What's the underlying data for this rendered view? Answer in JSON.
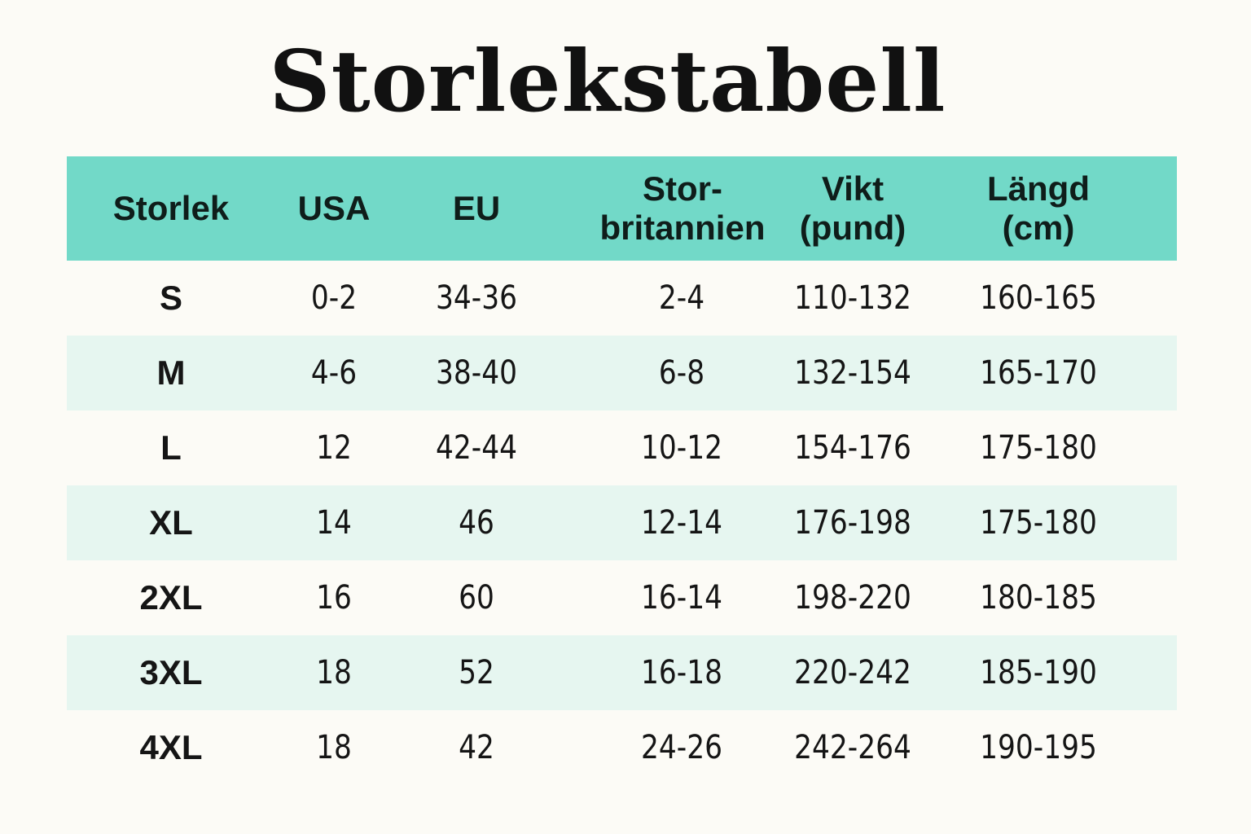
{
  "title": "Storlekstabell",
  "colors": {
    "background": "#fcfbf6",
    "header_bg": "#72d9c8",
    "alt_row_bg": "#e6f6f0",
    "text": "#111111"
  },
  "table": {
    "headers": [
      {
        "line1": "Storlek",
        "line2": ""
      },
      {
        "line1": "USA",
        "line2": ""
      },
      {
        "line1": "EU",
        "line2": ""
      },
      {
        "line1": "Stor-",
        "line2": "britannien"
      },
      {
        "line1": "Vikt",
        "line2": "(pund)"
      },
      {
        "line1": "Längd",
        "line2": "(cm)"
      }
    ],
    "rows": [
      [
        "S",
        "0-2",
        "34-36",
        "2-4",
        "110-132",
        "160-165"
      ],
      [
        "M",
        "4-6",
        "38-40",
        "6-8",
        "132-154",
        "165-170"
      ],
      [
        "L",
        "12",
        "42-44",
        "10-12",
        "154-176",
        "175-180"
      ],
      [
        "XL",
        "14",
        "46",
        "12-14",
        "176-198",
        "175-180"
      ],
      [
        "2XL",
        "16",
        "60",
        "16-14",
        "198-220",
        "180-185"
      ],
      [
        "3XL",
        "18",
        "52",
        "16-18",
        "220-242",
        "185-190"
      ],
      [
        "4XL",
        "18",
        "42",
        "24-26",
        "242-264",
        "190-195"
      ]
    ]
  }
}
